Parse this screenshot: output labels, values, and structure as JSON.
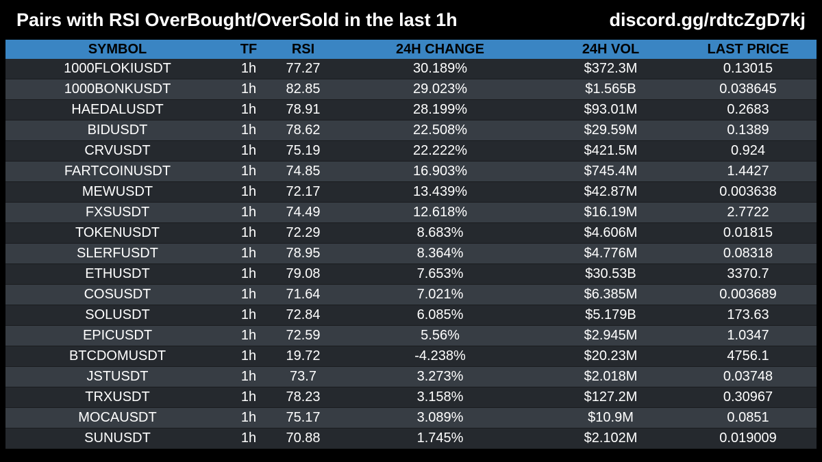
{
  "header": {
    "title": "Pairs with RSI OverBought/OverSold in the last 1h",
    "link": "discord.gg/rdtcZgD7kj"
  },
  "colors": {
    "background": "#000000",
    "header_row": "#3a85c3",
    "row_dark": "#25292e",
    "row_light": "#373d44"
  },
  "table": {
    "columns": [
      "SYMBOL",
      "TF",
      "RSI",
      "24H CHANGE",
      "24H VOL",
      "LAST PRICE"
    ],
    "rows": [
      {
        "symbol": "1000FLOKIUSDT",
        "tf": "1h",
        "rsi": "77.27",
        "change": "30.189%",
        "vol": "$372.3M",
        "price": "0.13015"
      },
      {
        "symbol": "1000BONKUSDT",
        "tf": "1h",
        "rsi": "82.85",
        "change": "29.023%",
        "vol": "$1.565B",
        "price": "0.038645"
      },
      {
        "symbol": "HAEDALUSDT",
        "tf": "1h",
        "rsi": "78.91",
        "change": "28.199%",
        "vol": "$93.01M",
        "price": "0.2683"
      },
      {
        "symbol": "BIDUSDT",
        "tf": "1h",
        "rsi": "78.62",
        "change": "22.508%",
        "vol": "$29.59M",
        "price": "0.1389"
      },
      {
        "symbol": "CRVUSDT",
        "tf": "1h",
        "rsi": "75.19",
        "change": "22.222%",
        "vol": "$421.5M",
        "price": "0.924"
      },
      {
        "symbol": "FARTCOINUSDT",
        "tf": "1h",
        "rsi": "74.85",
        "change": "16.903%",
        "vol": "$745.4M",
        "price": "1.4427"
      },
      {
        "symbol": "MEWUSDT",
        "tf": "1h",
        "rsi": "72.17",
        "change": "13.439%",
        "vol": "$42.87M",
        "price": "0.003638"
      },
      {
        "symbol": "FXSUSDT",
        "tf": "1h",
        "rsi": "74.49",
        "change": "12.618%",
        "vol": "$16.19M",
        "price": "2.7722"
      },
      {
        "symbol": "TOKENUSDT",
        "tf": "1h",
        "rsi": "72.29",
        "change": "8.683%",
        "vol": "$4.606M",
        "price": "0.01815"
      },
      {
        "symbol": "SLERFUSDT",
        "tf": "1h",
        "rsi": "78.95",
        "change": "8.364%",
        "vol": "$4.776M",
        "price": "0.08318"
      },
      {
        "symbol": "ETHUSDT",
        "tf": "1h",
        "rsi": "79.08",
        "change": "7.653%",
        "vol": "$30.53B",
        "price": "3370.7"
      },
      {
        "symbol": "COSUSDT",
        "tf": "1h",
        "rsi": "71.64",
        "change": "7.021%",
        "vol": "$6.385M",
        "price": "0.003689"
      },
      {
        "symbol": "SOLUSDT",
        "tf": "1h",
        "rsi": "72.84",
        "change": "6.085%",
        "vol": "$5.179B",
        "price": "173.63"
      },
      {
        "symbol": "EPICUSDT",
        "tf": "1h",
        "rsi": "72.59",
        "change": "5.56%",
        "vol": "$2.945M",
        "price": "1.0347"
      },
      {
        "symbol": "BTCDOMUSDT",
        "tf": "1h",
        "rsi": "19.72",
        "change": "-4.238%",
        "vol": "$20.23M",
        "price": "4756.1"
      },
      {
        "symbol": "JSTUSDT",
        "tf": "1h",
        "rsi": "73.7",
        "change": "3.273%",
        "vol": "$2.018M",
        "price": "0.03748"
      },
      {
        "symbol": "TRXUSDT",
        "tf": "1h",
        "rsi": "78.23",
        "change": "3.158%",
        "vol": "$127.2M",
        "price": "0.30967"
      },
      {
        "symbol": "MOCAUSDT",
        "tf": "1h",
        "rsi": "75.17",
        "change": "3.089%",
        "vol": "$10.9M",
        "price": "0.0851"
      },
      {
        "symbol": "SUNUSDT",
        "tf": "1h",
        "rsi": "70.88",
        "change": "1.745%",
        "vol": "$2.102M",
        "price": "0.019009"
      }
    ]
  }
}
